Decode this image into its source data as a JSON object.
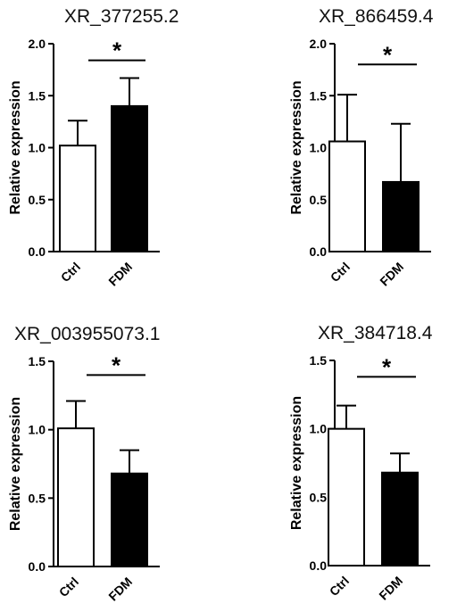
{
  "chart_data": [
    {
      "type": "bar",
      "title": "XR_377255.2",
      "ylabel": "Relative expression",
      "categories": [
        "Ctrl",
        "FDM"
      ],
      "values": [
        1.02,
        1.4
      ],
      "errors": [
        0.24,
        0.27
      ],
      "fills": [
        "#ffffff",
        "#000000"
      ],
      "ylim": [
        0,
        2.0
      ],
      "yticks": [
        "0.0",
        "0.5",
        "1.0",
        "1.5",
        "2.0"
      ],
      "ytick_values": [
        0,
        0.5,
        1.0,
        1.5,
        2.0
      ],
      "significance": "*",
      "sig_level": 1.84,
      "grid": false
    },
    {
      "type": "bar",
      "title": "XR_866459.4",
      "ylabel": "Relative expression",
      "categories": [
        "Ctrl",
        "FDM"
      ],
      "values": [
        1.06,
        0.67
      ],
      "errors": [
        0.45,
        0.56
      ],
      "fills": [
        "#ffffff",
        "#000000"
      ],
      "ylim": [
        0,
        2.0
      ],
      "yticks": [
        "0.0",
        "0.5",
        "1.0",
        "1.5",
        "2.0"
      ],
      "ytick_values": [
        0,
        0.5,
        1.0,
        1.5,
        2.0
      ],
      "significance": "*",
      "sig_level": 1.8,
      "grid": false
    },
    {
      "type": "bar",
      "title": "XR_003955073.1",
      "ylabel": "Relative expression",
      "categories": [
        "Ctrl",
        "FDM"
      ],
      "values": [
        1.01,
        0.68
      ],
      "errors": [
        0.2,
        0.17
      ],
      "fills": [
        "#ffffff",
        "#000000"
      ],
      "ylim": [
        0,
        1.5
      ],
      "yticks": [
        "0.0",
        "0.5",
        "1.0",
        "1.5"
      ],
      "ytick_values": [
        0,
        0.5,
        1.0,
        1.5
      ],
      "significance": "*",
      "sig_level": 1.4,
      "grid": false
    },
    {
      "type": "bar",
      "title": "XR_384718.4",
      "ylabel": "Relative expression",
      "categories": [
        "Ctrl",
        "FDM"
      ],
      "values": [
        1.0,
        0.68
      ],
      "errors": [
        0.17,
        0.14
      ],
      "fills": [
        "#ffffff",
        "#000000"
      ],
      "ylim": [
        0,
        1.5
      ],
      "yticks": [
        "0.0",
        "0.5",
        "1.0",
        "1.5"
      ],
      "ytick_values": [
        0,
        0.5,
        1.0,
        1.5
      ],
      "significance": "*",
      "sig_level": 1.38,
      "grid": false
    }
  ]
}
